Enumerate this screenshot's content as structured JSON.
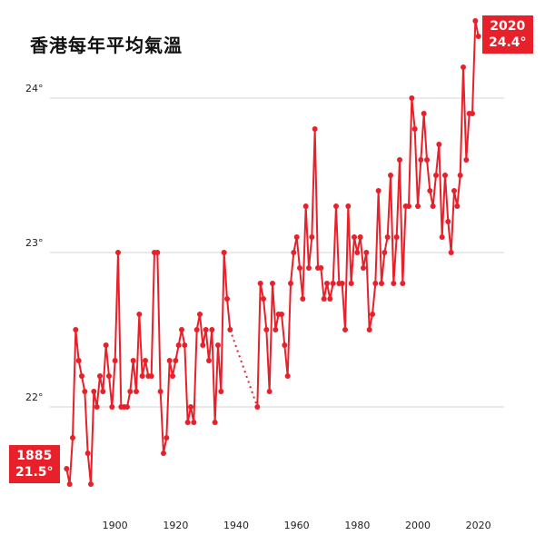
{
  "chart_data": {
    "type": "line",
    "title": "香港每年平均氣溫",
    "xlabel": "",
    "ylabel": "",
    "xlim": [
      1880,
      2030
    ],
    "ylim": [
      21.4,
      24.6
    ],
    "x_ticks": [
      1900,
      1920,
      1940,
      1960,
      1980,
      2000,
      2020
    ],
    "y_ticks": [
      22,
      23,
      24
    ],
    "y_tick_suffix": "°",
    "grid": "horizontal",
    "line_color": "#e8202a",
    "gap": {
      "from_year": 1939,
      "to_year": 1947,
      "style": "dotted"
    },
    "start_label": {
      "year": "1885",
      "value": "21.5°"
    },
    "end_label": {
      "year": "2020",
      "value": "24.4°"
    },
    "series": [
      {
        "name": "",
        "points": [
          [
            1884,
            21.6
          ],
          [
            1885,
            21.5
          ],
          [
            1886,
            21.8
          ],
          [
            1887,
            22.5
          ],
          [
            1888,
            22.3
          ],
          [
            1889,
            22.2
          ],
          [
            1890,
            22.1
          ],
          [
            1891,
            21.7
          ],
          [
            1892,
            21.5
          ],
          [
            1893,
            22.1
          ],
          [
            1894,
            22.0
          ],
          [
            1895,
            22.2
          ],
          [
            1896,
            22.1
          ],
          [
            1897,
            22.4
          ],
          [
            1898,
            22.2
          ],
          [
            1899,
            22.0
          ],
          [
            1900,
            22.3
          ],
          [
            1901,
            23.0
          ],
          [
            1902,
            22.0
          ],
          [
            1903,
            22.0
          ],
          [
            1904,
            22.0
          ],
          [
            1905,
            22.1
          ],
          [
            1906,
            22.3
          ],
          [
            1907,
            22.1
          ],
          [
            1908,
            22.6
          ],
          [
            1909,
            22.2
          ],
          [
            1910,
            22.3
          ],
          [
            1911,
            22.2
          ],
          [
            1912,
            22.2
          ],
          [
            1913,
            23.0
          ],
          [
            1914,
            23.0
          ],
          [
            1915,
            22.1
          ],
          [
            1916,
            21.7
          ],
          [
            1917,
            21.8
          ],
          [
            1918,
            22.3
          ],
          [
            1919,
            22.2
          ],
          [
            1920,
            22.3
          ],
          [
            1921,
            22.4
          ],
          [
            1922,
            22.5
          ],
          [
            1923,
            22.4
          ],
          [
            1924,
            21.9
          ],
          [
            1925,
            22.0
          ],
          [
            1926,
            21.9
          ],
          [
            1927,
            22.5
          ],
          [
            1928,
            22.6
          ],
          [
            1929,
            22.4
          ],
          [
            1930,
            22.5
          ],
          [
            1931,
            22.3
          ],
          [
            1932,
            22.5
          ],
          [
            1933,
            21.9
          ],
          [
            1934,
            22.4
          ],
          [
            1935,
            22.1
          ],
          [
            1936,
            23.0
          ],
          [
            1937,
            22.7
          ],
          [
            1938,
            22.5
          ],
          [
            1947,
            22.0
          ],
          [
            1948,
            22.8
          ],
          [
            1949,
            22.7
          ],
          [
            1950,
            22.5
          ],
          [
            1951,
            22.1
          ],
          [
            1952,
            22.8
          ],
          [
            1953,
            22.5
          ],
          [
            1954,
            22.6
          ],
          [
            1955,
            22.6
          ],
          [
            1956,
            22.4
          ],
          [
            1957,
            22.2
          ],
          [
            1958,
            22.8
          ],
          [
            1959,
            23.0
          ],
          [
            1960,
            23.1
          ],
          [
            1961,
            22.9
          ],
          [
            1962,
            22.7
          ],
          [
            1963,
            23.3
          ],
          [
            1964,
            22.9
          ],
          [
            1965,
            23.1
          ],
          [
            1966,
            23.8
          ],
          [
            1967,
            22.9
          ],
          [
            1968,
            22.9
          ],
          [
            1969,
            22.7
          ],
          [
            1970,
            22.8
          ],
          [
            1971,
            22.7
          ],
          [
            1972,
            22.8
          ],
          [
            1973,
            23.3
          ],
          [
            1974,
            22.8
          ],
          [
            1975,
            22.8
          ],
          [
            1976,
            22.5
          ],
          [
            1977,
            23.3
          ],
          [
            1978,
            22.8
          ],
          [
            1979,
            23.1
          ],
          [
            1980,
            23.0
          ],
          [
            1981,
            23.1
          ],
          [
            1982,
            22.9
          ],
          [
            1983,
            23.0
          ],
          [
            1984,
            22.5
          ],
          [
            1985,
            22.6
          ],
          [
            1986,
            22.8
          ],
          [
            1987,
            23.4
          ],
          [
            1988,
            22.8
          ],
          [
            1989,
            23.0
          ],
          [
            1990,
            23.1
          ],
          [
            1991,
            23.5
          ],
          [
            1992,
            22.8
          ],
          [
            1993,
            23.1
          ],
          [
            1994,
            23.6
          ],
          [
            1995,
            22.8
          ],
          [
            1996,
            23.3
          ],
          [
            1997,
            23.3
          ],
          [
            1998,
            24.0
          ],
          [
            1999,
            23.8
          ],
          [
            2000,
            23.3
          ],
          [
            2001,
            23.6
          ],
          [
            2002,
            23.9
          ],
          [
            2003,
            23.6
          ],
          [
            2004,
            23.4
          ],
          [
            2005,
            23.3
          ],
          [
            2006,
            23.5
          ],
          [
            2007,
            23.7
          ],
          [
            2008,
            23.1
          ],
          [
            2009,
            23.5
          ],
          [
            2010,
            23.2
          ],
          [
            2011,
            23.0
          ],
          [
            2012,
            23.4
          ],
          [
            2013,
            23.3
          ],
          [
            2014,
            23.5
          ],
          [
            2015,
            24.2
          ],
          [
            2016,
            23.6
          ],
          [
            2017,
            23.9
          ],
          [
            2018,
            23.9
          ],
          [
            2019,
            24.5
          ],
          [
            2020,
            24.4
          ]
        ]
      }
    ]
  }
}
